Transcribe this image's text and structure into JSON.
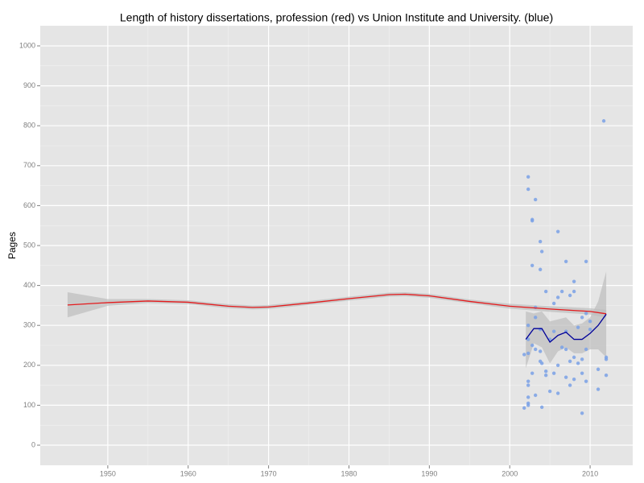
{
  "chart_data": {
    "type": "scatter",
    "title": "Length of history dissertations, profession (red) vs Union Institute and University. (blue)",
    "y_label": "Pages",
    "xlim": [
      1941.6,
      2015.3
    ],
    "ylim": [
      -50.4,
      1050.4
    ],
    "xticks": [
      1950,
      1960,
      1970,
      1980,
      1990,
      2000,
      2010
    ],
    "yticks": [
      0,
      100,
      200,
      300,
      400,
      500,
      600,
      700,
      800,
      900,
      1000
    ],
    "grid": true,
    "background": "#e5e5e5",
    "band_color": "#bdbdbd",
    "series": [
      {
        "mark": "point",
        "color": "#7aa1e6",
        "x": [
          2002.3,
          2002.3,
          2002.3,
          2002.3,
          2002.3,
          2002.3,
          2002.3,
          2002.3,
          2002.3,
          2002.3,
          2001.8,
          2001.8,
          2002.8,
          2002.8,
          2002.8,
          2002.8,
          2002.8,
          2003.2,
          2003.2,
          2003.2,
          2003.2,
          2003.2,
          2003.8,
          2003.8,
          2003.8,
          2003.8,
          2003.8,
          2004,
          2004,
          2004,
          2004.5,
          2004.5,
          2004.5,
          2005,
          2005,
          2005.5,
          2005.5,
          2005.5,
          2006,
          2006,
          2006,
          2006,
          2006.5,
          2006.5,
          2007,
          2007,
          2007,
          2007,
          2007.5,
          2007.5,
          2007.5,
          2008,
          2008,
          2008,
          2008,
          2008.5,
          2008.5,
          2009,
          2009,
          2009,
          2009,
          2009.5,
          2009.5,
          2009.5,
          2009.5,
          2010,
          2010,
          2011,
          2011,
          2011.7,
          2012,
          2012,
          2012
        ],
        "values": [
          672,
          641,
          300,
          265,
          230,
          160,
          150,
          120,
          105,
          100,
          227,
          93,
          565,
          562,
          450,
          250,
          180,
          615,
          345,
          320,
          240,
          125,
          510,
          440,
          290,
          235,
          210,
          485,
          205,
          95,
          385,
          185,
          175,
          265,
          135,
          355,
          285,
          180,
          535,
          370,
          200,
          130,
          385,
          245,
          460,
          285,
          170,
          240,
          375,
          210,
          150,
          410,
          385,
          220,
          165,
          295,
          205,
          320,
          215,
          180,
          80,
          460,
          330,
          240,
          160,
          310,
          290,
          190,
          140,
          812,
          220,
          215,
          175
        ]
      },
      {
        "mark": "smooth",
        "color": "#e41a1c",
        "x": [
          1945,
          1950,
          1955,
          1960,
          1965,
          1968,
          1970,
          1975,
          1980,
          1985,
          1987,
          1990,
          1995,
          2000,
          2005,
          2010,
          2012
        ],
        "values": [
          351,
          357,
          361,
          358,
          348,
          345,
          346,
          356,
          367,
          377,
          378,
          374,
          360,
          348,
          341,
          335,
          329
        ],
        "lower": [
          320,
          349,
          356,
          353,
          343,
          340,
          341,
          351,
          362,
          372,
          373,
          369,
          355,
          342,
          334,
          327,
          319
        ],
        "upper": [
          383,
          366,
          366,
          363,
          353,
          350,
          351,
          361,
          372,
          382,
          383,
          379,
          365,
          354,
          348,
          343,
          339
        ]
      },
      {
        "mark": "smooth",
        "color": "#000099",
        "x": [
          2002,
          2003,
          2004,
          2005,
          2006,
          2007,
          2008,
          2009,
          2010,
          2011,
          2012
        ],
        "values": [
          265,
          292,
          292,
          258,
          275,
          283,
          265,
          265,
          280,
          300,
          328
        ],
        "lower": [
          193,
          255,
          245,
          205,
          235,
          245,
          230,
          230,
          240,
          240,
          220
        ],
        "upper": [
          335,
          330,
          335,
          310,
          315,
          320,
          300,
          305,
          320,
          360,
          435
        ]
      }
    ]
  }
}
